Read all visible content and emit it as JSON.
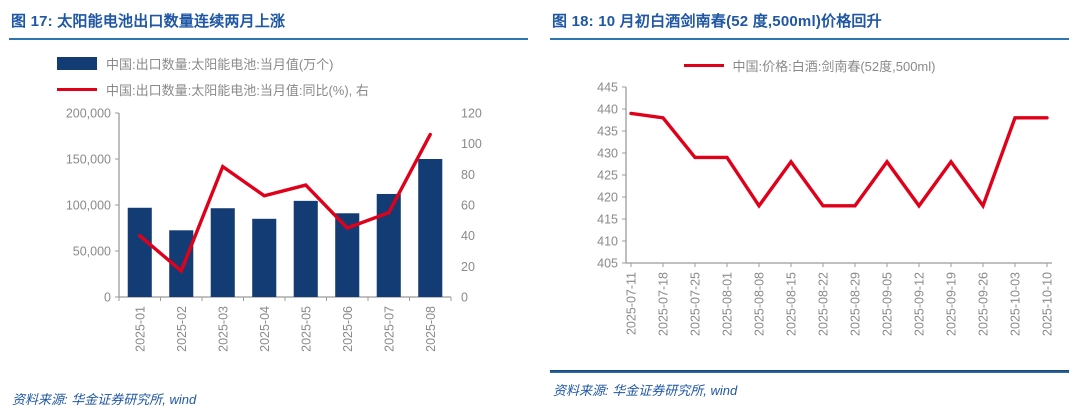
{
  "colors": {
    "title": "#1F57A5",
    "title_underline": "#2E75B6",
    "bar": "#143C74",
    "line": "#E0001A",
    "axis_text": "#8A8A8A",
    "axis_line": "#9B9B9B",
    "source_text": "#1F57A5",
    "separator": "#2E75B6"
  },
  "panels": [
    {
      "title": "图 17: 太阳能电池出口数量连续两月上涨",
      "legend": [
        {
          "swatch": "bar-swatch",
          "color": "#143C74",
          "label": "中国:出口数量:太阳能电池:当月值(万个)"
        },
        {
          "swatch": "line-swatch",
          "color": "#E0001A",
          "label": "中国:出口数量:太阳能电池:当月值:同比(%), 右"
        }
      ],
      "source": "资料来源: 华金证券研究所, wind"
    },
    {
      "title": "图 18: 10 月初白酒剑南春(52 度,500ml)价格回升",
      "legend": [
        {
          "swatch": "line-swatch",
          "color": "#E0001A",
          "label": "中国:价格:白酒:剑南春(52度,500ml)"
        }
      ],
      "source": "资料来源: 华金证券研究所, wind"
    }
  ],
  "chart_data": [
    {
      "type": "bar",
      "title": "图 17: 太阳能电池出口数量连续两月上涨",
      "categories": [
        "2025-01",
        "2025-02",
        "2025-03",
        "2025-04",
        "2025-05",
        "2025-06",
        "2025-07",
        "2025-08"
      ],
      "series": [
        {
          "name": "中国:出口数量:太阳能电池:当月值(万个)",
          "kind": "bar",
          "axis": "left",
          "color": "#143C74",
          "values": [
            97000,
            72500,
            96500,
            85000,
            104500,
            91000,
            112000,
            150000
          ]
        },
        {
          "name": "中国:出口数量:太阳能电池:当月值:同比(%), 右",
          "kind": "line",
          "axis": "right",
          "color": "#E0001A",
          "values": [
            40,
            17,
            85,
            66,
            73,
            45,
            55,
            106
          ]
        }
      ],
      "left_axis": {
        "min": 0,
        "max": 200000,
        "step": 50000,
        "format": "thousands"
      },
      "right_axis": {
        "min": 0,
        "max": 120,
        "step": 20
      },
      "xlabel": "",
      "ylabel": "",
      "grid": false,
      "legend_position": "top-left"
    },
    {
      "type": "line",
      "title": "图 18: 10 月初白酒剑南春(52 度,500ml)价格回升",
      "categories": [
        "2025-07-11",
        "2025-07-18",
        "2025-07-25",
        "2025-08-01",
        "2025-08-08",
        "2025-08-15",
        "2025-08-22",
        "2025-08-29",
        "2025-09-05",
        "2025-09-12",
        "2025-09-19",
        "2025-09-26",
        "2025-10-03",
        "2025-10-10"
      ],
      "series": [
        {
          "name": "中国:价格:白酒:剑南春(52度,500ml)",
          "kind": "line",
          "axis": "left",
          "color": "#E0001A",
          "values": [
            439,
            438,
            429,
            429,
            418,
            428,
            418,
            418,
            428,
            418,
            428,
            418,
            438,
            438
          ]
        }
      ],
      "left_axis": {
        "min": 405,
        "max": 445,
        "step": 5,
        "format": "plain"
      },
      "xlabel": "",
      "ylabel": "",
      "grid": false,
      "legend_position": "top-center"
    }
  ]
}
